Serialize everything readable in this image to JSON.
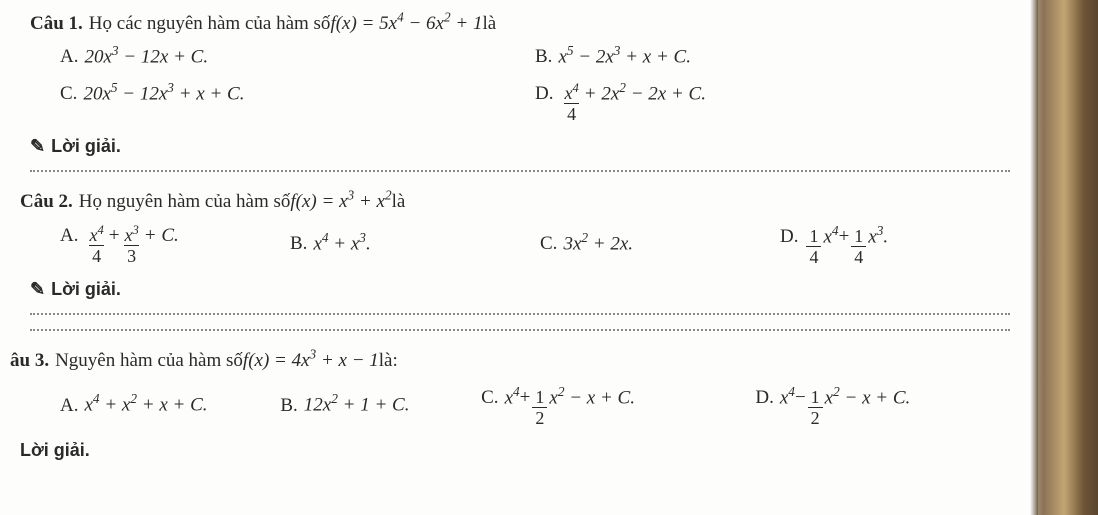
{
  "q1": {
    "label": "Câu 1.",
    "prompt_pre": "Họ các nguyên hàm của hàm số ",
    "prompt_post": " là",
    "func_lhs": "f(x) = ",
    "func_rhs_a": "5x",
    "func_rhs_exp1": "4",
    "func_rhs_b": " − 6x",
    "func_rhs_exp2": "2",
    "func_rhs_c": " + 1",
    "A_label": "A.",
    "A_a": "20x",
    "A_e1": "3",
    "A_b": " − 12x + C.",
    "B_label": "B.",
    "B_a": "x",
    "B_e1": "5",
    "B_b": " − 2x",
    "B_e2": "3",
    "B_c": " + x + C.",
    "C_label": "C.",
    "C_a": "20x",
    "C_e1": "5",
    "C_b": " − 12x",
    "C_e2": "3",
    "C_c": " + x + C.",
    "D_label": "D.",
    "D_num": "x",
    "D_numexp": "4",
    "D_den": "4",
    "D_b": " + 2x",
    "D_e2": "2",
    "D_c": " − 2x + C."
  },
  "q2": {
    "label": "Câu 2.",
    "prompt_pre": "Họ nguyên hàm của hàm số ",
    "prompt_post": " là",
    "func_lhs": "f(x) = x",
    "func_e1": "3",
    "func_mid": " + x",
    "func_e2": "2",
    "A_label": "A.",
    "A_n1": "x",
    "A_n1e": "4",
    "A_d1": "4",
    "A_plus": " + ",
    "A_n2": "x",
    "A_n2e": "3",
    "A_d2": "3",
    "A_tail": " + C.",
    "B_label": "B.",
    "B_a": "x",
    "B_e1": "4",
    "B_b": " + x",
    "B_e2": "3",
    "B_c": ".",
    "C_label": "C.",
    "C_a": "3x",
    "C_e1": "2",
    "C_b": " + 2x.",
    "D_label": "D.",
    "D_n1": "1",
    "D_d1": "4",
    "D_x1": "x",
    "D_e1": "4",
    "D_plus": " + ",
    "D_n2": "1",
    "D_d2": "4",
    "D_x2": "x",
    "D_e2": "3",
    "D_tail": "."
  },
  "q3": {
    "label": "âu 3.",
    "prompt_pre": "Nguyên hàm của hàm số ",
    "prompt_post": " là:",
    "func_lhs": "f(x) = 4x",
    "func_e1": "3",
    "func_mid": " + x − 1",
    "A_label": "A.",
    "A_a": "x",
    "A_e1": "4",
    "A_b": " + x",
    "A_e2": "2",
    "A_c": " + x + C.",
    "B_label": "B.",
    "B_a": "12x",
    "B_e1": "2",
    "B_b": " + 1 + C.",
    "C_label": "C.",
    "C_a": "x",
    "C_e1": "4",
    "C_plus": " + ",
    "C_n": "1",
    "C_d": "2",
    "C_x": "x",
    "C_e2": "2",
    "C_tail": " − x + C.",
    "D_label": "D.",
    "D_a": "x",
    "D_e1": "4",
    "D_minus": " − ",
    "D_n": "1",
    "D_d": "2",
    "D_x": "x",
    "D_e2": "2",
    "D_tail": " − x + C."
  },
  "loigiai": "Lời giải.",
  "colors": {
    "text": "#2a2a2a",
    "dotted": "#888888",
    "page_bg": "#fdfdfb",
    "wood1": "#8b7355",
    "wood2": "#c4a574"
  }
}
